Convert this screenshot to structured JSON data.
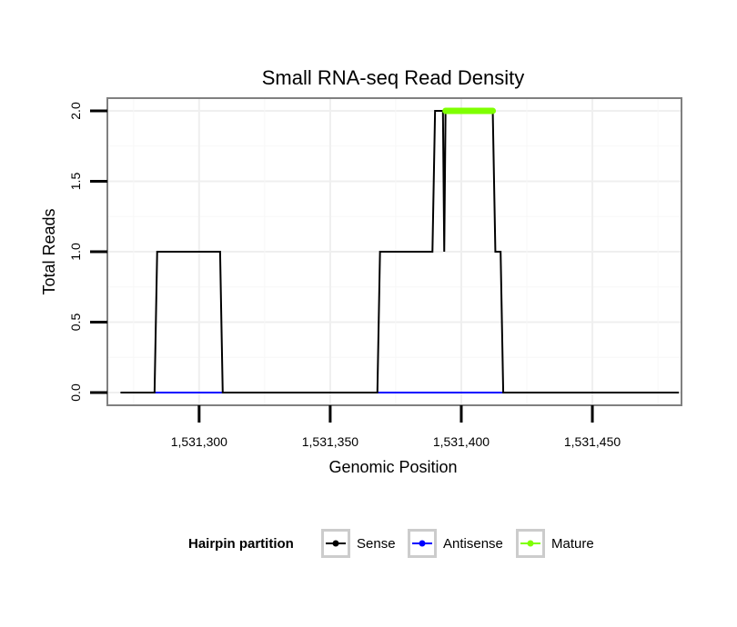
{
  "chart_data": {
    "type": "line",
    "title": "Small RNA-seq Read Density",
    "xlabel": "Genomic Position",
    "ylabel": "Total Reads",
    "xlim": [
      1531265,
      1531484
    ],
    "ylim": [
      -0.09,
      2.09
    ],
    "x_ticks": [
      1531300,
      1531350,
      1531400,
      1531450
    ],
    "x_tick_labels": [
      "1,531,300",
      "1,531,350",
      "1,531,400",
      "1,531,450"
    ],
    "y_ticks": [
      0,
      0.5,
      1,
      1.5,
      2
    ],
    "y_tick_labels": [
      "0.0",
      "0.5",
      "1.0",
      "1.5",
      "2.0"
    ],
    "grid": true,
    "legend": {
      "title": "Hairpin partition",
      "position": "bottom",
      "entries": [
        "Sense",
        "Antisense",
        "Mature"
      ]
    },
    "colors": {
      "Sense": "#000000",
      "Antisense": "#0000ff",
      "Mature": "#7fff00"
    },
    "series": [
      {
        "name": "Sense",
        "x": [
          1531270,
          1531283,
          1531284,
          1531308,
          1531309,
          1531368,
          1531369,
          1531389,
          1531390,
          1531393,
          1531393.5,
          1531394,
          1531412,
          1531413,
          1531415,
          1531416,
          1531483
        ],
        "y": [
          0,
          0,
          1,
          1,
          0,
          0,
          1,
          1,
          2,
          2,
          1,
          2,
          2,
          1,
          1,
          0,
          0
        ]
      },
      {
        "name": "Antisense",
        "x": [
          1531283,
          1531309,
          1531368,
          1531416
        ],
        "y": [
          0,
          0,
          0,
          0
        ],
        "segments": [
          [
            0,
            1
          ],
          [
            2,
            3
          ]
        ]
      },
      {
        "name": "Mature",
        "x": [
          1531394,
          1531412
        ],
        "y": [
          2,
          2
        ]
      }
    ]
  }
}
